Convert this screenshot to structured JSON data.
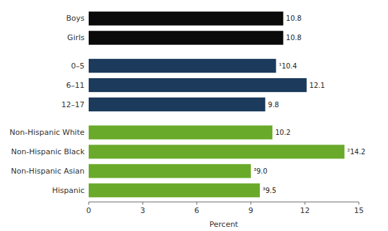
{
  "chart_data": {
    "type": "bar",
    "orientation": "horizontal",
    "categories": [
      "Boys",
      "Girls",
      "0–5",
      "6–11",
      "12–17",
      "Non-Hispanic White",
      "Non-Hispanic Black",
      "Non-Hispanic Asian",
      "Hispanic"
    ],
    "values": [
      10.8,
      10.8,
      10.4,
      12.1,
      9.8,
      10.2,
      14.2,
      9.0,
      9.5
    ],
    "value_labels": [
      "10.8",
      "10.8",
      "¹10.4",
      "12.1",
      "9.8",
      "10.2",
      "²14.2",
      "³9.0",
      "³9.5"
    ],
    "colors": [
      "#0a0a0a",
      "#0a0a0a",
      "#1b3a5c",
      "#1b3a5c",
      "#1b3a5c",
      "#6aaa2a",
      "#6aaa2a",
      "#6aaa2a",
      "#6aaa2a"
    ],
    "xlabel": "Percent",
    "xlim": [
      0,
      15
    ],
    "xticks": [
      0,
      3,
      6,
      9,
      12,
      15
    ],
    "grid": false,
    "data_labels": true
  }
}
